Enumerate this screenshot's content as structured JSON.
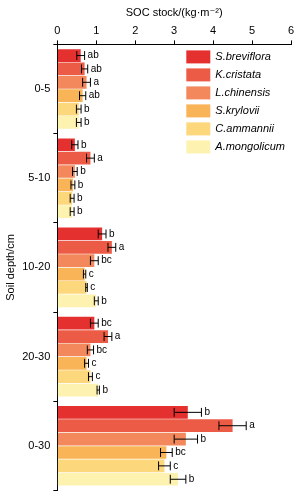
{
  "chart_data": {
    "type": "bar",
    "orientation": "horizontal",
    "x_label": "SOC stock/(kg·m⁻²)",
    "y_label": "Soil depth/cm",
    "categories": [
      "0-5",
      "5-10",
      "10-20",
      "20-30",
      "0-30"
    ],
    "xlim": [
      0,
      6
    ],
    "xticks": [
      0,
      1,
      2,
      3,
      4,
      5,
      6
    ],
    "grid": false,
    "legend": "top-right",
    "series": [
      {
        "name": "S.breviflora",
        "color": "#e4312f",
        "values": [
          0.6,
          0.45,
          1.15,
          0.95,
          3.35
        ],
        "error": [
          0.1,
          0.08,
          0.1,
          0.1,
          0.35
        ],
        "letters": [
          "ab",
          "b",
          "b",
          "bc",
          "b"
        ]
      },
      {
        "name": "K.cristata",
        "color": "#ec5b45",
        "values": [
          0.7,
          0.85,
          1.4,
          1.3,
          4.5
        ],
        "error": [
          0.08,
          0.1,
          0.1,
          0.1,
          0.35
        ],
        "letters": [
          "ab",
          "a",
          "a",
          "a",
          "a"
        ]
      },
      {
        "name": "L.chinensis",
        "color": "#f2885c",
        "values": [
          0.75,
          0.45,
          0.95,
          0.85,
          3.3
        ],
        "error": [
          0.1,
          0.06,
          0.1,
          0.08,
          0.3
        ],
        "letters": [
          "a",
          "b",
          "bc",
          "bc",
          "b"
        ]
      },
      {
        "name": "S.krylovii",
        "color": "#f8b457",
        "values": [
          0.65,
          0.4,
          0.7,
          0.75,
          2.8
        ],
        "error": [
          0.08,
          0.05,
          0.03,
          0.05,
          0.15
        ],
        "letters": [
          "ab",
          "b",
          "c",
          "c",
          "bc"
        ]
      },
      {
        "name": "C.ammannii",
        "color": "#fcd77b",
        "values": [
          0.55,
          0.38,
          0.75,
          0.85,
          2.75
        ],
        "error": [
          0.06,
          0.05,
          0.02,
          0.05,
          0.15
        ],
        "letters": [
          "b",
          "b",
          "c",
          "c",
          "c"
        ]
      },
      {
        "name": "A.mongolicum",
        "color": "#fdf2b0",
        "values": [
          0.55,
          0.38,
          1.0,
          1.05,
          3.1
        ],
        "error": [
          0.06,
          0.05,
          0.05,
          0.03,
          0.2
        ],
        "letters": [
          "b",
          "b",
          "b",
          "b",
          "b"
        ]
      }
    ]
  }
}
